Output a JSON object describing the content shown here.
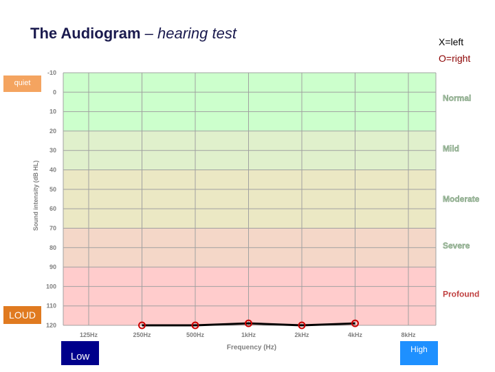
{
  "header": {
    "title_main": "The Audiogram",
    "title_sub": "– hearing test"
  },
  "legend": {
    "left": "X=left",
    "right": "O=right"
  },
  "tags": {
    "quiet": "quiet",
    "loud": "LOUD",
    "low": "Low",
    "high": "High"
  },
  "colors": {
    "right_ear": "#cc0000",
    "threshold_line": "#000000",
    "grid": "#a0a0a0",
    "band_text": "#a7c4a6"
  },
  "chart_data": {
    "type": "line",
    "title": "The Audiogram – hearing test",
    "xlabel": "Frequency (Hz)",
    "ylabel": "Sound intensity (dB HL)",
    "categories": [
      "125Hz",
      "250Hz",
      "500Hz",
      "1kHz",
      "2kHz",
      "4kHz",
      "8kHz"
    ],
    "y_ticks": [
      -10,
      0,
      10,
      20,
      30,
      40,
      50,
      60,
      70,
      80,
      90,
      100,
      110,
      120
    ],
    "ylim": [
      -10,
      120
    ],
    "y_inverted": true,
    "grid": true,
    "series": [
      {
        "name": "O=right",
        "marker": "circle",
        "x": [
          "250Hz",
          "500Hz",
          "1kHz",
          "2kHz",
          "4kHz"
        ],
        "values": [
          120,
          120,
          119,
          120,
          119
        ]
      }
    ],
    "bands": [
      {
        "label": "Normal",
        "from": -10,
        "to": 20,
        "color": "#ccffcc",
        "label_at": 3
      },
      {
        "label": "Mild",
        "from": 20,
        "to": 40,
        "color": "#e0f0cc",
        "label_at": 29
      },
      {
        "label": "Moderate",
        "from": 40,
        "to": 70,
        "color": "#ebe8c4",
        "label_at": 55
      },
      {
        "label": "Severe",
        "from": 70,
        "to": 90,
        "color": "#f4d7c8",
        "label_at": 79
      },
      {
        "label": "Profound",
        "from": 90,
        "to": 120,
        "color": "#ffcccc",
        "label_at": 104
      }
    ]
  }
}
